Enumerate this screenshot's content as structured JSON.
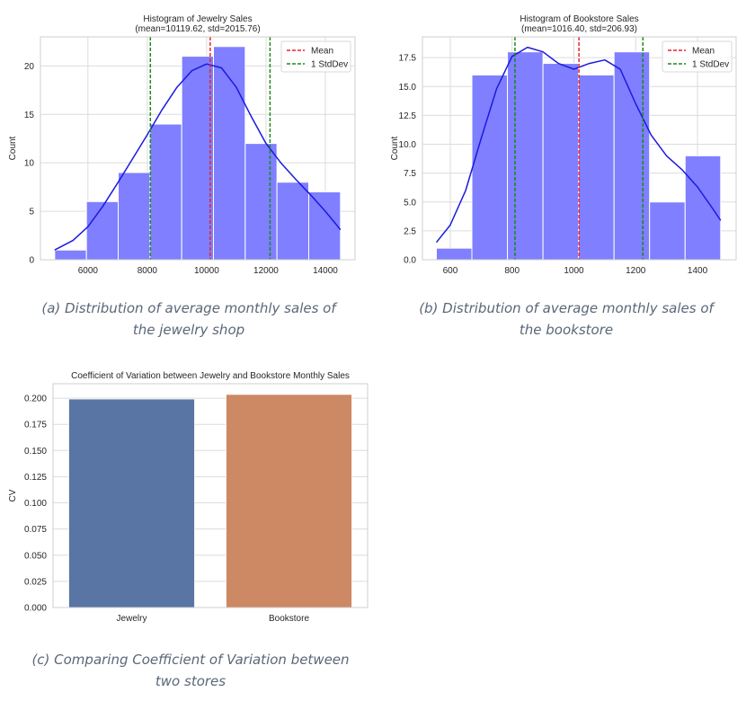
{
  "colors": {
    "hist_fill": "#7f7fff",
    "kde_line": "#1a1adf",
    "mean_line": "#e8242a",
    "std_line": "#1b8a1b",
    "grid": "#dcdcdc",
    "bar_jewelry": "#5975a4",
    "bar_bookstore": "#cc8963",
    "caption": "#5a6778"
  },
  "captions": {
    "a": "(a) Distribution of average monthly sales of the jewelry shop",
    "b": "(b) Distribution of average monthly sales of the bookstore",
    "c": "(c) Comparing Coefficient of Variation between two stores"
  },
  "chart_data": [
    {
      "type": "bar",
      "subtype": "histogram",
      "title": "Histogram of Jewelry Sales",
      "subtitle": "(mean=10119.62, std=2015.76)",
      "xlabel": "",
      "ylabel": "Count",
      "xlim": [
        4400,
        15000
      ],
      "ylim": [
        0,
        23
      ],
      "xticks": [
        6000,
        8000,
        10000,
        12000,
        14000
      ],
      "xtick_labels": [
        "6000",
        "8000",
        "10000",
        "12000",
        "14000"
      ],
      "yticks": [
        0,
        5,
        10,
        15,
        20
      ],
      "ytick_labels": [
        "0",
        "5",
        "10",
        "15",
        "20"
      ],
      "bin_edges": [
        4880,
        5950,
        7020,
        8090,
        9160,
        10230,
        11300,
        12370,
        13440,
        14510
      ],
      "counts": [
        1,
        6,
        9,
        14,
        21,
        22,
        12,
        8,
        7
      ],
      "kde": {
        "x": [
          4880,
          5500,
          6000,
          6500,
          7000,
          7500,
          8000,
          8500,
          9000,
          9500,
          10000,
          10500,
          11000,
          11500,
          12000,
          12500,
          13000,
          13500,
          14000,
          14510
        ],
        "y": [
          1.0,
          2.0,
          3.4,
          5.5,
          7.9,
          10.4,
          12.9,
          15.5,
          17.8,
          19.5,
          20.2,
          19.8,
          17.8,
          14.8,
          12.0,
          10.0,
          8.3,
          6.7,
          5.0,
          3.1
        ]
      },
      "mean": 10119.62,
      "std": 2015.76,
      "vlines": [
        {
          "name": "Mean",
          "x": 10119.62,
          "color_key": "mean_line"
        },
        {
          "name": "1 StdDev",
          "x": 8103.86,
          "color_key": "std_line"
        },
        {
          "name": "1 StdDev",
          "x": 12135.38,
          "color_key": "std_line"
        }
      ],
      "legend": {
        "position": "top-right",
        "entries": [
          "Mean",
          "1 StdDev"
        ]
      },
      "grid": true
    },
    {
      "type": "bar",
      "subtype": "histogram",
      "title": "Histogram of Bookstore Sales",
      "subtitle": "(mean=1016.40, std=206.93)",
      "xlabel": "",
      "ylabel": "Count",
      "xlim": [
        510,
        1525
      ],
      "ylim": [
        0,
        19.3
      ],
      "xticks": [
        600,
        800,
        1000,
        1200,
        1400
      ],
      "xtick_labels": [
        "600",
        "800",
        "1000",
        "1200",
        "1400"
      ],
      "yticks": [
        0,
        2.5,
        5,
        7.5,
        10,
        12.5,
        15,
        17.5
      ],
      "ytick_labels": [
        "0.0",
        "2.5",
        "5.0",
        "7.5",
        "10.0",
        "12.5",
        "15.0",
        "17.5"
      ],
      "bin_edges": [
        555,
        670,
        785,
        900,
        1015,
        1130,
        1245,
        1360,
        1475
      ],
      "counts": [
        1,
        16,
        18,
        17,
        16,
        18,
        5,
        9
      ],
      "kde": {
        "x": [
          555,
          600,
          650,
          700,
          750,
          800,
          850,
          900,
          950,
          1000,
          1050,
          1100,
          1150,
          1200,
          1250,
          1300,
          1350,
          1400,
          1450,
          1475
        ],
        "y": [
          1.5,
          3.0,
          6.0,
          10.5,
          14.8,
          17.6,
          18.4,
          18.0,
          17.0,
          16.5,
          17.0,
          17.3,
          16.5,
          13.5,
          10.8,
          9.0,
          7.8,
          6.3,
          4.4,
          3.4
        ]
      },
      "mean": 1016.4,
      "std": 206.93,
      "vlines": [
        {
          "name": "Mean",
          "x": 1016.4,
          "color_key": "mean_line"
        },
        {
          "name": "1 StdDev",
          "x": 809.47,
          "color_key": "std_line"
        },
        {
          "name": "1 StdDev",
          "x": 1223.33,
          "color_key": "std_line"
        }
      ],
      "legend": {
        "position": "top-right",
        "entries": [
          "Mean",
          "1 StdDev"
        ]
      },
      "grid": true
    },
    {
      "type": "bar",
      "title": "Coefficient of Variation between Jewelry and Bookstore Monthly Sales",
      "xlabel": "",
      "ylabel": "CV",
      "categories": [
        "Jewelry",
        "Bookstore"
      ],
      "values": [
        0.1992,
        0.2036
      ],
      "ylim": [
        0,
        0.2138
      ],
      "yticks": [
        0,
        0.025,
        0.05,
        0.075,
        0.1,
        0.125,
        0.15,
        0.175,
        0.2
      ],
      "ytick_labels": [
        "0.000",
        "0.025",
        "0.050",
        "0.075",
        "0.100",
        "0.125",
        "0.150",
        "0.175",
        "0.200"
      ],
      "color_keys": [
        "bar_jewelry",
        "bar_bookstore"
      ],
      "grid": true
    }
  ]
}
